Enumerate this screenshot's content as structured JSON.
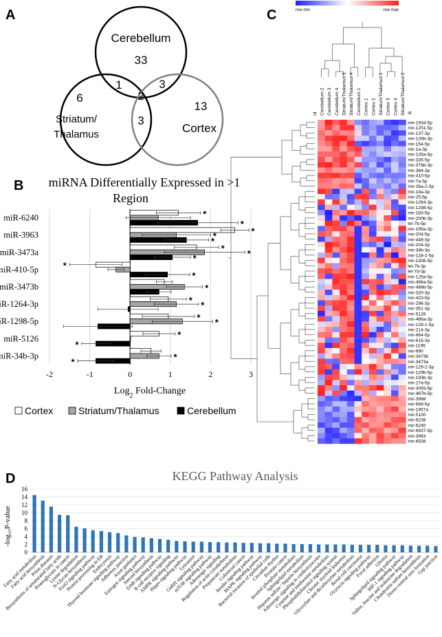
{
  "panel_labels": {
    "a": "A",
    "b": "B",
    "c": "C",
    "d": "D"
  },
  "venn": {
    "regions": {
      "cerebellum": "Cerebellum",
      "striatum": "Striatum/\nThalamus",
      "striatum_line1": "Striatum/",
      "striatum_line2": "Thalamus",
      "cortex": "Cortex"
    },
    "counts": {
      "cerebellum_only": "33",
      "striatum_only": "6",
      "cortex_only": "13",
      "cereb_striatum": "1",
      "cereb_cortex": "3",
      "striatum_cortex": "3",
      "all_three": "2"
    },
    "colors": {
      "outline": "#000000",
      "cortex_outline": "#808080"
    }
  },
  "chart_data": [
    {
      "type": "bar",
      "orientation": "horizontal",
      "title": "miRNA Differentially Expressed in >1 Region",
      "title_line1": "miRNA Differentially Expressed in >1",
      "title_line2": "Region",
      "xlabel": "Log",
      "xlabel_sub": "2",
      "xlabel_suffix": " Fold-Change",
      "xlim": [
        -2,
        3
      ],
      "xticks": [
        "-2",
        "-1",
        "0",
        "1",
        "2",
        "3"
      ],
      "xtick_values": [
        -2,
        -1,
        0,
        1,
        2,
        3
      ],
      "categories": [
        "miR-6240",
        "miR-3963",
        "miR-3473a",
        "miR-410-5p",
        "miR-3473b",
        "miR-1264-3p",
        "miR-1298-5p",
        "miR-5126",
        "miR-34b-3p"
      ],
      "series": [
        {
          "name": "Cortex",
          "color": "#ffffff",
          "values": [
            1.2,
            2.6,
            1.65,
            -0.85,
            0.85,
            0.95,
            0.95,
            0.72,
            0.52
          ],
          "errors": [
            0.55,
            0.35,
            0.55,
            0.65,
            0.2,
            0.45,
            0.65,
            0.4,
            0.25
          ],
          "sig": [
            1,
            1,
            1,
            1,
            0,
            1,
            1,
            1,
            0
          ]
        },
        {
          "name": "Striatum/Thalamus",
          "color": "#a6a6a6",
          "values": [
            0.7,
            1.15,
            1.85,
            -0.35,
            1.35,
            1.15,
            1.3,
            0.0,
            0.72
          ],
          "errors": [
            0.8,
            0.85,
            1.0,
            0.2,
            0.45,
            0.55,
            0.75,
            0.0,
            0.3
          ],
          "sig": [
            0,
            1,
            1,
            0,
            1,
            1,
            1,
            0,
            1
          ]
        },
        {
          "name": "Cerebellum",
          "color": "#000000",
          "values": [
            1.68,
            1.4,
            1.05,
            0.93,
            0.72,
            -0.05,
            -0.8,
            -0.85,
            -0.85
          ],
          "errors": [
            1.0,
            0.55,
            0.45,
            0.55,
            0.3,
            0.75,
            0.85,
            0.35,
            0.45
          ],
          "sig": [
            1,
            1,
            1,
            1,
            0,
            0,
            0,
            1,
            1
          ]
        }
      ],
      "sig_marker": "*",
      "legend": [
        "Cortex",
        "Striatum/Thalamus",
        "Cerebellum"
      ],
      "legend_position": "bottom"
    },
    {
      "type": "heatmap",
      "scale_min_label": "row min",
      "scale_max_label": "row max",
      "colors": {
        "min": "#1f1fff",
        "mid": "#ffffff",
        "max": "#ff1f1f"
      },
      "columns": [
        "Cerebellum 2",
        "Cerebellum 3",
        "Cerebellum 4",
        "Striatum/Thalamus 3",
        "Striatum/Thalamus 4",
        "Cerebellum 1",
        "Cortex 1",
        "Cortex 2",
        "Striatum/Thalamus 1",
        "Cortex 3",
        "Cortex 4",
        "Striatum/Thalamus 2"
      ],
      "column_header": "id",
      "row_header": "id",
      "rows": [
        "mir-1934-5p",
        "mir-1251-5p",
        "mir-137-3p",
        "mir-126b-3p",
        "mir-154-5p",
        "mir-1a-3p",
        "mir-135a-5p",
        "mir-335-5p",
        "mir-376b-3p",
        "mir-384-3p",
        "mir-410-5p",
        "mir-7a-5p",
        "mir-26a-2-3p",
        "mir-18a-3p",
        "mir-25-5p",
        "mir-1264-3p",
        "mir-1298-5p",
        "mir-183-5p",
        "mir-200b-3p",
        "let-7b-5p",
        "mir-195a-3p",
        "mir-204-5p",
        "mir-448-3p",
        "mir-204-3p",
        "mir-34b-3p",
        "mir-128-2-5p",
        "mir-1306-5p",
        "let-7b-3p",
        "let-7d-3p",
        "mir-125a-5p",
        "mir-486a-5p",
        "mir-486b-5p",
        "mir-320-3p",
        "mir-423-5p",
        "mir-296-3p",
        "mir-351-3p",
        "mir-5126",
        "mir-486a-3p",
        "mir-128-1-5p",
        "mir-214-3p",
        "mir-664-5p",
        "mir-615-3p",
        "mir-1195",
        "mir-690",
        "mir-3473b",
        "mir-3473a",
        "mir-129-2-3p",
        "mir-129b-5p",
        "mir-193b-3p",
        "mir-27a-5p",
        "mir-3093-5p",
        "mir-487b-5p",
        "mir-3968",
        "mir-668-5p",
        "mir-1957a",
        "mir-5100",
        "mir-6238",
        "mir-6240",
        "mir-6937-5p",
        "mir-3963",
        "mir-6538"
      ]
    },
    {
      "type": "bar",
      "title": "KEGG Pathway Analysis",
      "ylabel": "-log₁₀P-value",
      "ylim": [
        0,
        16
      ],
      "yticks": [
        "0",
        "2",
        "4",
        "6",
        "8",
        "10",
        "12",
        "14",
        "16"
      ],
      "ytick_values": [
        0,
        2,
        4,
        6,
        8,
        10,
        12,
        14,
        16
      ],
      "color": "#2e75b6",
      "categories": [
        "Fatty acid metabolism",
        "Fatty acid biosynthesis",
        "Prion diseases",
        "Biosynthesis of unsaturated fatty acids",
        "Proteoglycans in cancer",
        "Lysine degradation",
        "N-Glycan biosynthesis",
        "FoxO signaling pathway",
        "Protein processing in ER",
        "Endocytosis",
        "Thyroid hormone signaling pathway",
        "Adherens junction",
        "Axon guidance",
        "Estrogen signaling pathway",
        "Steroid biosynthesis",
        "ErbB signaling pathway",
        "B cell receptor signaling",
        "AMPK signaling pathway",
        "Hippo signaling pathway",
        "Lysosome",
        "GnRH signaling pathway",
        "mTOR signaling pathway",
        "Adrenergic signaling",
        "Regulation of actin cytoskeleton",
        "Propanoate metabolism",
        "Colorectal cancer",
        "Insulin signaling pathway",
        "MAPK signaling pathway",
        "Bacterial invasion of epithelial cells",
        "Circadian rhythm",
        "Prostate cancer",
        "Inositol phosphate metabolism",
        "Sphingolipid metabolism",
        "Heparan sulfate / heparin biosynthesis",
        "Adrenergic signaling in cardiomyocytes",
        "Cysteine and methionine metabolism",
        "Phosphatidylinositol signaling system",
        "Chronic myeloid leukemia",
        "Glyoxylate and dicarboxylate metabolism",
        "Renal cell carcinoma",
        "Oxytocin signaling pathway",
        "Focal adhesion",
        "Glioma",
        "Sphingolipid signaling pathway",
        "HIF-1 signaling pathway",
        "Valine, leucine and isoleucine degradation",
        "Chondroitin sulfate biosynthesis",
        "Dorso-ventral axis formation",
        "Gap junction"
      ],
      "values": [
        14.5,
        13.1,
        11.6,
        9.5,
        9.4,
        6.5,
        6.1,
        5.6,
        5.4,
        5.1,
        4.9,
        4.3,
        3.9,
        3.8,
        3.6,
        3.4,
        3.2,
        2.9,
        2.8,
        2.7,
        2.7,
        2.6,
        2.6,
        2.5,
        2.5,
        2.4,
        2.4,
        2.3,
        2.3,
        2.2,
        2.2,
        2.1,
        2.1,
        2.1,
        2.0,
        2.0,
        2.0,
        2.0,
        1.9,
        1.9,
        1.9,
        1.9,
        1.8,
        1.8,
        1.8,
        1.7,
        1.7,
        1.7,
        1.6
      ]
    }
  ]
}
